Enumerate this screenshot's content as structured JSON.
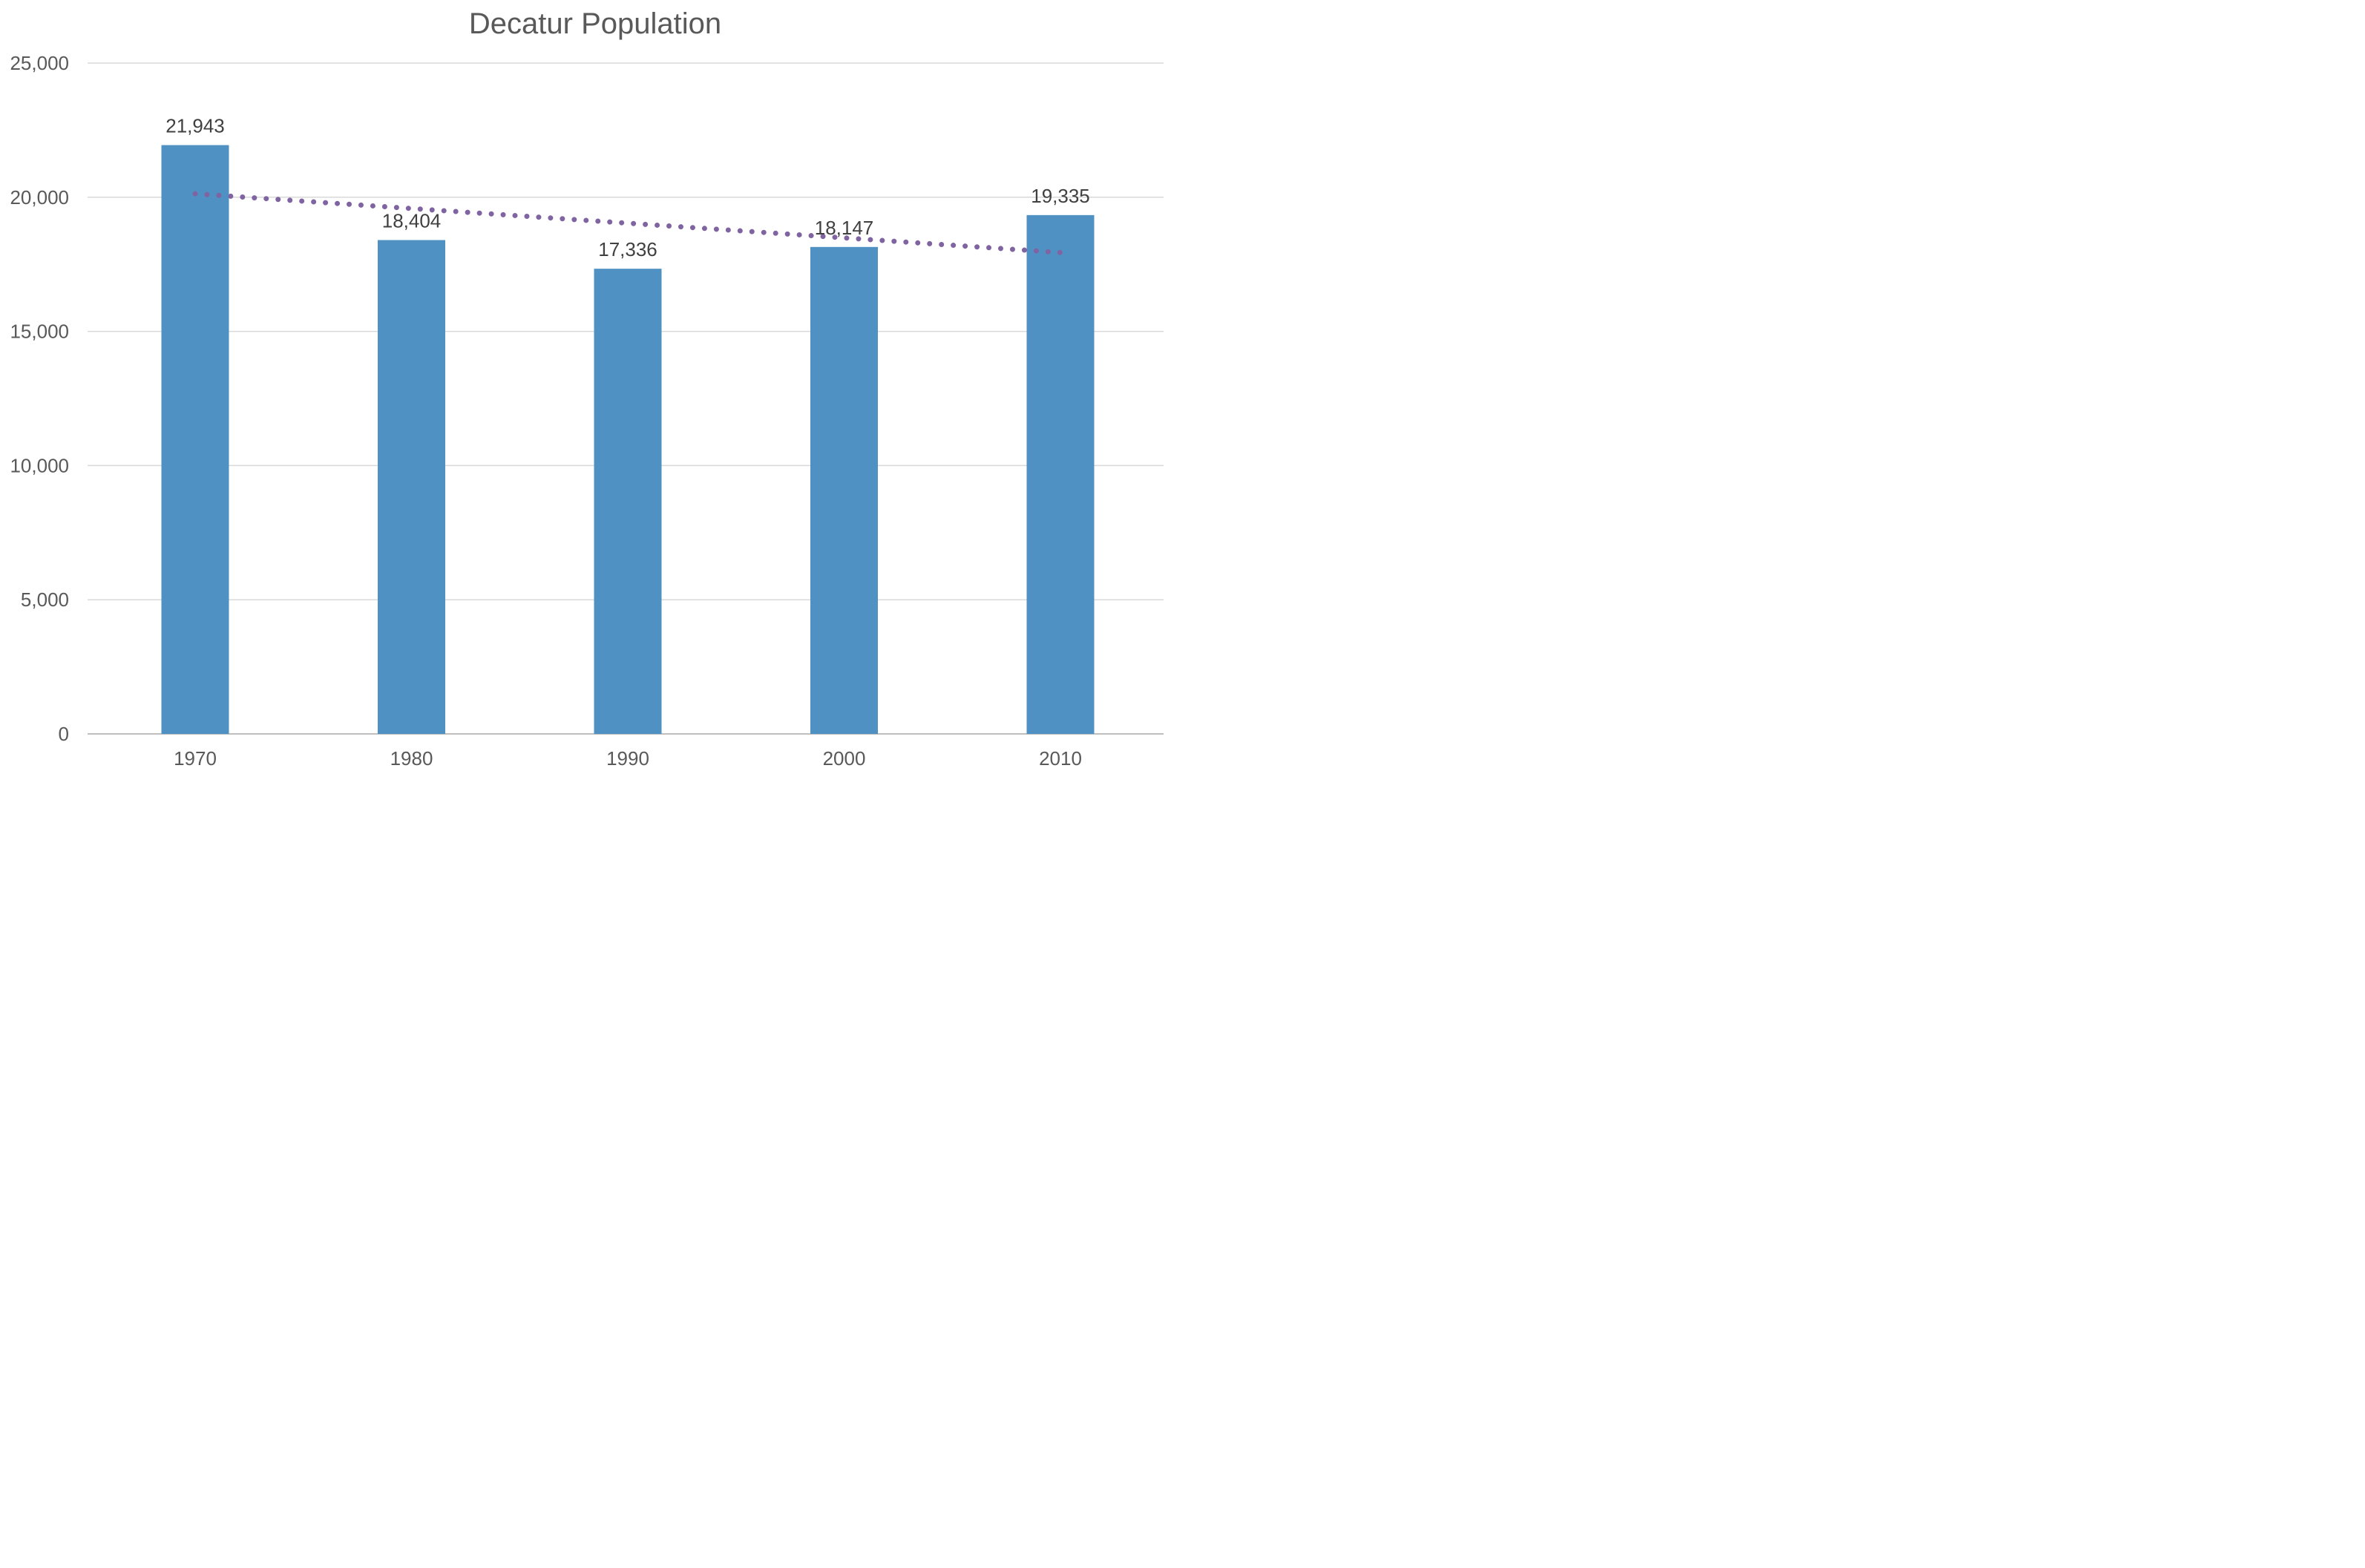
{
  "chart_data": {
    "type": "bar",
    "title": "Decatur Population",
    "xlabel": "",
    "ylabel": "",
    "categories": [
      "1970",
      "1980",
      "1990",
      "2000",
      "2010"
    ],
    "series": [
      {
        "values": [
          21943,
          18404,
          17336,
          18147,
          19335
        ],
        "data_labels": [
          "21,943",
          "18,404",
          "17,336",
          "18,147",
          "19,335"
        ],
        "color": "#4f91c3"
      }
    ],
    "trendline": {
      "type": "linear",
      "style": "dotted",
      "color": "#8064a2"
    },
    "ylim": [
      0,
      25000
    ],
    "yticks": [
      0,
      5000,
      10000,
      15000,
      20000,
      25000
    ],
    "ytick_labels": [
      "0",
      "5,000",
      "10,000",
      "15,000",
      "20,000",
      "25,000"
    ],
    "grid": true,
    "legend": "none"
  }
}
